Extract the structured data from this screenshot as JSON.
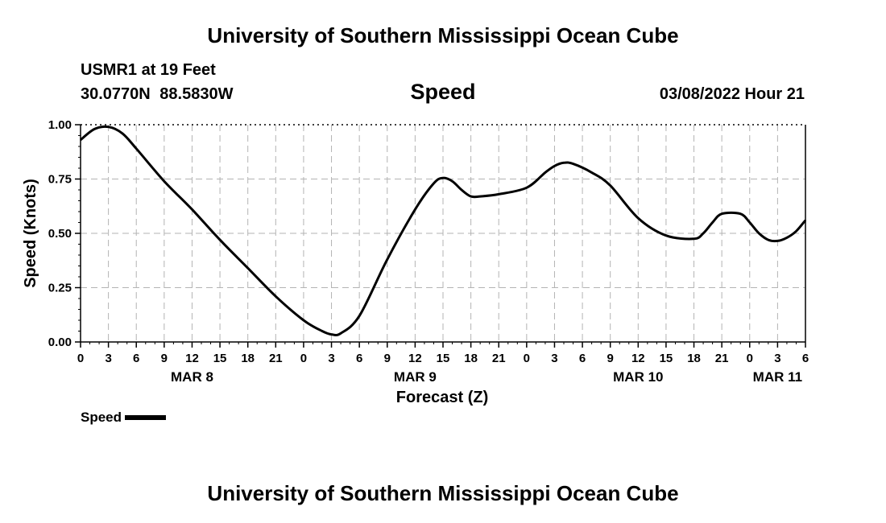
{
  "header": {
    "title": "University of Southern Mississippi Ocean Cube",
    "station": "USMR1 at 19 Feet",
    "coords": "30.0770N 88.5830W",
    "variable": "Speed",
    "datetime": "03/08/2022 Hour 21"
  },
  "footer": {
    "title": "University of Southern Mississippi Ocean Cube"
  },
  "legend": {
    "label": "Speed"
  },
  "chart_data": {
    "type": "line",
    "xlabel": "Forecast (Z)",
    "ylabel": "Speed (Knots)",
    "xlim": [
      0,
      78
    ],
    "ylim": [
      0,
      1
    ],
    "x_tick_labels": [
      "0",
      "3",
      "6",
      "9",
      "12",
      "15",
      "18",
      "21",
      "0",
      "3",
      "6",
      "9",
      "12",
      "15",
      "18",
      "21",
      "0",
      "3",
      "6",
      "9",
      "12",
      "15",
      "18",
      "21",
      "0",
      "3",
      "6"
    ],
    "date_labels": [
      {
        "label": "MAR 8",
        "hour": 12
      },
      {
        "label": "MAR 9",
        "hour": 36
      },
      {
        "label": "MAR 10",
        "hour": 60
      },
      {
        "label": "MAR 11",
        "hour": 75
      }
    ],
    "y_ticks": [
      0,
      0.25,
      0.5,
      0.75,
      1.0
    ],
    "y_tick_labels": [
      "0.00",
      "0.25",
      "0.50",
      "0.75",
      "1.00"
    ],
    "grid": true,
    "series": [
      {
        "name": "Speed",
        "color": "#000000",
        "x": [
          0,
          1.5,
          3,
          4.5,
          6,
          9,
          12,
          15,
          18,
          21,
          24,
          26,
          27,
          28,
          30,
          33,
          36,
          38,
          39,
          40,
          41,
          42,
          43,
          45,
          48,
          50,
          51,
          52,
          53,
          55,
          57,
          60,
          63,
          66,
          67,
          68,
          69,
          71,
          72,
          73,
          74,
          75,
          76,
          77,
          78
        ],
        "values": [
          0.93,
          0.98,
          0.99,
          0.96,
          0.89,
          0.74,
          0.61,
          0.47,
          0.34,
          0.21,
          0.1,
          0.05,
          0.035,
          0.04,
          0.12,
          0.38,
          0.61,
          0.73,
          0.755,
          0.74,
          0.7,
          0.67,
          0.67,
          0.68,
          0.71,
          0.78,
          0.81,
          0.825,
          0.82,
          0.78,
          0.72,
          0.57,
          0.49,
          0.475,
          0.5,
          0.55,
          0.59,
          0.59,
          0.55,
          0.5,
          0.47,
          0.465,
          0.48,
          0.51,
          0.56
        ]
      }
    ]
  }
}
